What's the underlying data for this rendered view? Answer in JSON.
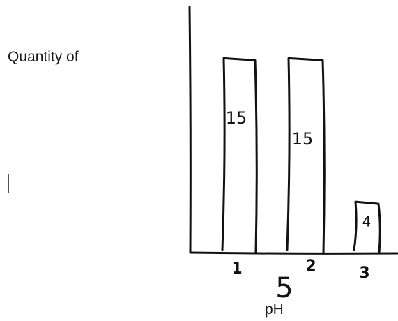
{
  "chart_data": {
    "type": "bar",
    "title": "",
    "ylabel": "Quantity of",
    "xlabel": "pH",
    "categories": [
      "1",
      "2",
      "3"
    ],
    "values": [
      15,
      15,
      4
    ],
    "data_labels": [
      "15",
      "15",
      "4"
    ],
    "annotations": [
      "5"
    ],
    "ylim": [
      0,
      17
    ],
    "grid": false,
    "legend": "none",
    "colors": {
      "ink": "#111111",
      "background": "#ffffff"
    }
  }
}
